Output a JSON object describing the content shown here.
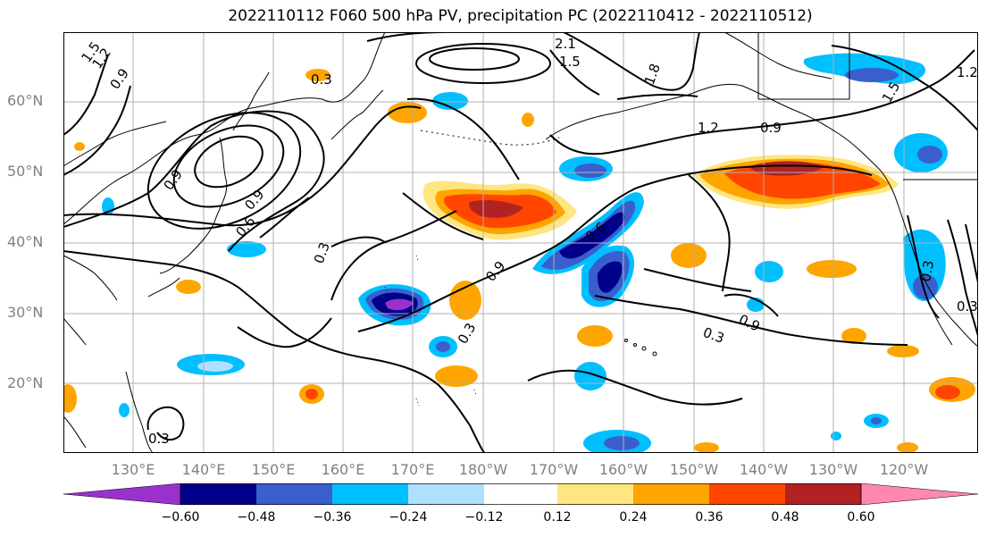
{
  "title": "2022110112 F060 500 hPa PV, precipitation PC (2022110412 - 2022110512)",
  "lat_labels": [
    "60°N",
    "50°N",
    "40°N",
    "30°N",
    "20°N"
  ],
  "lon_labels": [
    "130°E",
    "140°E",
    "150°E",
    "160°E",
    "170°E",
    "180°W",
    "170°W",
    "160°W",
    "150°W",
    "140°W",
    "130°W",
    "120°W"
  ],
  "contour_labels": [
    "1.5",
    "1.2",
    "0.9",
    "2.1",
    "1.8",
    "1.5",
    "1.2",
    "0.9",
    "0.3",
    "0.6",
    "0.9",
    "0.3",
    "0.9",
    "0.6",
    "0.9",
    "0.3",
    "0.3",
    "0.3",
    "0.9",
    "1.2",
    "1.5",
    "0.3",
    "0.3"
  ],
  "colorbar": {
    "ticks": [
      "−0.60",
      "−0.48",
      "−0.36",
      "−0.24",
      "−0.12",
      "0.12",
      "0.24",
      "0.36",
      "0.48",
      "0.60"
    ],
    "colors": [
      "#9932cc",
      "#00008b",
      "#3a5fcd",
      "#00bfff",
      "#b0e0ff",
      "#ffffff",
      "#ffe680",
      "#ffa500",
      "#ff4500",
      "#b22222",
      "#ff88b0"
    ]
  },
  "colors": {
    "grid": "#b0b0b0",
    "contour": "#000000"
  }
}
